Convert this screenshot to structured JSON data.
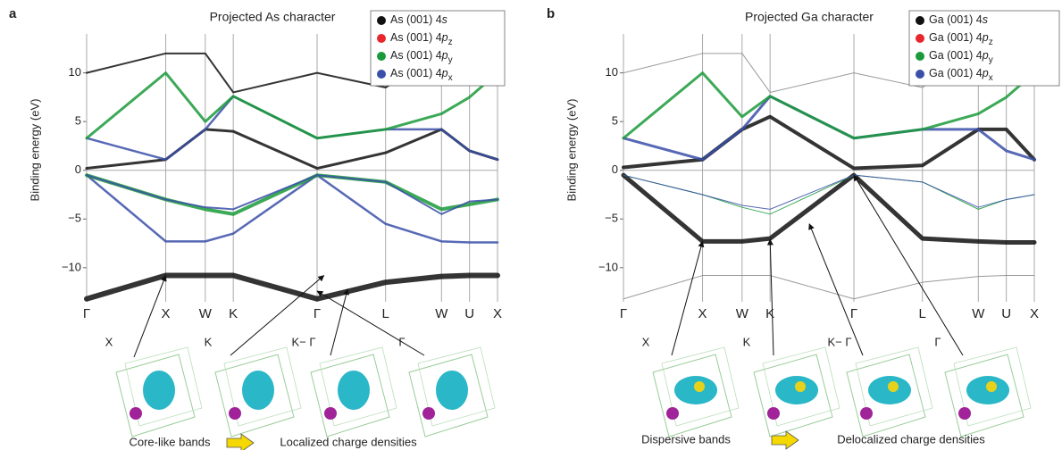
{
  "figure": {
    "panels": [
      {
        "label": "a",
        "insets": [
          "X",
          "K",
          "K− Γ",
          "Γ"
        ],
        "caption_left": "Core-like bands",
        "caption_right": "Localized charge densities"
      },
      {
        "label": "b",
        "insets": [
          "X",
          "K",
          "K− Γ",
          "Γ"
        ],
        "caption_left": "Dispersive bands",
        "caption_right": "Delocalized charge densities"
      }
    ]
  },
  "chart_data": [
    {
      "type": "line",
      "title": "Projected As character",
      "y_label": "Binding energy (eV)",
      "x": [
        0,
        1,
        1.5,
        1.854,
        2.914,
        3.78,
        4.487,
        4.841,
        5.195
      ],
      "xlim": [
        0,
        5.195
      ],
      "xticks": [
        {
          "value": 0,
          "label": "Γ"
        },
        {
          "value": 1,
          "label": "X"
        },
        {
          "value": 1.5,
          "label": "W"
        },
        {
          "value": 1.854,
          "label": "K"
        },
        {
          "value": 2.914,
          "label": "Γ"
        },
        {
          "value": 3.78,
          "label": "L"
        },
        {
          "value": 4.487,
          "label": "W"
        },
        {
          "value": 4.841,
          "label": "U"
        },
        {
          "value": 5.195,
          "label": "X"
        }
      ],
      "ylim": [
        -13.5,
        14
      ],
      "yticks": [
        10,
        5,
        0,
        {
          "value": -5,
          "label": "−5"
        },
        {
          "value": -10,
          "label": "−10"
        }
      ],
      "grid": true,
      "legend": [
        {
          "text": "As (001) 4",
          "orbital": "s",
          "color": "#111111"
        },
        {
          "text": "As (001) 4",
          "orbital": "p",
          "subscript": "z",
          "color": "#e8262b"
        },
        {
          "text": "As (001) 4",
          "orbital": "p",
          "subscript": "y",
          "color": "#1a9a3a"
        },
        {
          "text": "As (001) 4",
          "orbital": "p",
          "subscript": "x",
          "color": "#3a4fa8"
        }
      ],
      "bands": [
        {
          "color": "#111111",
          "line_width": 6,
          "values": [
            -13.2,
            -10.8,
            -10.8,
            -10.8,
            -13.2,
            -11.5,
            -10.9,
            -10.8,
            -10.8
          ]
        },
        {
          "color": "#3a4fa8",
          "line_width": 2.5,
          "values": [
            -0.5,
            -7.3,
            -7.3,
            -6.5,
            -0.5,
            -5.5,
            -7.3,
            -7.4,
            -7.4
          ]
        },
        {
          "color": "#1a9a3a",
          "line_width": 4,
          "values": [
            -0.5,
            -3,
            -4,
            -4.5,
            -0.5,
            -1.2,
            -4,
            -3.5,
            -3
          ]
        },
        {
          "color": "#3a4fa8",
          "line_width": 2,
          "values": [
            -0.5,
            -3,
            -3.8,
            -4,
            -0.5,
            -1.2,
            -4.5,
            -3.2,
            -3
          ]
        },
        {
          "color": "#111111",
          "line_width": 3,
          "values": [
            0.2,
            1.1,
            4.2,
            4,
            0.2,
            1.8,
            4.2,
            2,
            1.1
          ]
        },
        {
          "color": "#3a4fa8",
          "line_width": 2.5,
          "values": [
            3.3,
            1.1,
            4.2,
            7.6,
            3.3,
            4.2,
            4.2,
            2,
            1.1
          ]
        },
        {
          "color": "#1a9a3a",
          "line_width": 3,
          "values": [
            3.3,
            10,
            5,
            7.6,
            3.3,
            4.2,
            5.8,
            7.5,
            10
          ]
        },
        {
          "color": "#111111",
          "line_width": 2,
          "values": [
            10,
            12,
            12,
            8,
            10,
            8.5,
            12,
            12,
            12
          ]
        }
      ]
    },
    {
      "type": "line",
      "title": "Projected Ga character",
      "y_label": "Binding energy (eV)",
      "x": [
        0,
        1,
        1.5,
        1.854,
        2.914,
        3.78,
        4.487,
        4.841,
        5.195
      ],
      "xlim": [
        0,
        5.195
      ],
      "xticks": [
        {
          "value": 0,
          "label": "Γ"
        },
        {
          "value": 1,
          "label": "X"
        },
        {
          "value": 1.5,
          "label": "W"
        },
        {
          "value": 1.854,
          "label": "K"
        },
        {
          "value": 2.914,
          "label": "Γ"
        },
        {
          "value": 3.78,
          "label": "L"
        },
        {
          "value": 4.487,
          "label": "W"
        },
        {
          "value": 4.841,
          "label": "U"
        },
        {
          "value": 5.195,
          "label": "X"
        }
      ],
      "ylim": [
        -13.5,
        14
      ],
      "yticks": [
        10,
        5,
        0,
        {
          "value": -5,
          "label": "−5"
        },
        {
          "value": -10,
          "label": "−10"
        }
      ],
      "grid": true,
      "legend": [
        {
          "text": "Ga (001) 4",
          "orbital": "s",
          "color": "#111111"
        },
        {
          "text": "Ga (001) 4",
          "orbital": "p",
          "subscript": "z",
          "color": "#e8262b"
        },
        {
          "text": "Ga (001) 4",
          "orbital": "p",
          "subscript": "y",
          "color": "#1a9a3a"
        },
        {
          "text": "Ga (001) 4",
          "orbital": "p",
          "subscript": "x",
          "color": "#3a4fa8"
        }
      ],
      "bands": [
        {
          "color": "#888888",
          "line_width": 1,
          "values": [
            -13.2,
            -10.8,
            -10.8,
            -10.8,
            -13.2,
            -11.5,
            -10.9,
            -10.8,
            -10.8
          ]
        },
        {
          "color": "#111111",
          "line_width": 5,
          "values": [
            -0.5,
            -7.3,
            -7.3,
            -7,
            -0.5,
            -7,
            -7.3,
            -7.4,
            -7.4
          ]
        },
        {
          "color": "#1a9a3a",
          "line_width": 1,
          "values": [
            -0.5,
            -2.5,
            -3.8,
            -4.5,
            -0.5,
            -1.2,
            -4,
            -3,
            -2.5
          ]
        },
        {
          "color": "#3a4fa8",
          "line_width": 1,
          "values": [
            -0.5,
            -2.5,
            -3.6,
            -4,
            -0.5,
            -1.2,
            -3.8,
            -3,
            -2.5
          ]
        },
        {
          "color": "#111111",
          "line_width": 4,
          "values": [
            0.3,
            1.1,
            4.2,
            5.5,
            0.2,
            0.5,
            4.2,
            4.2,
            1.1
          ]
        },
        {
          "color": "#3a4fa8",
          "line_width": 3,
          "values": [
            3.3,
            1.1,
            4.2,
            7.6,
            3.3,
            4.2,
            4.2,
            2,
            1.1
          ]
        },
        {
          "color": "#1a9a3a",
          "line_width": 3,
          "values": [
            3.3,
            10,
            5.5,
            7.6,
            3.3,
            4.2,
            5.8,
            7.5,
            10
          ]
        },
        {
          "color": "#888888",
          "line_width": 1,
          "values": [
            10,
            12,
            12,
            8,
            10,
            8.5,
            12,
            12,
            12
          ]
        }
      ]
    }
  ]
}
